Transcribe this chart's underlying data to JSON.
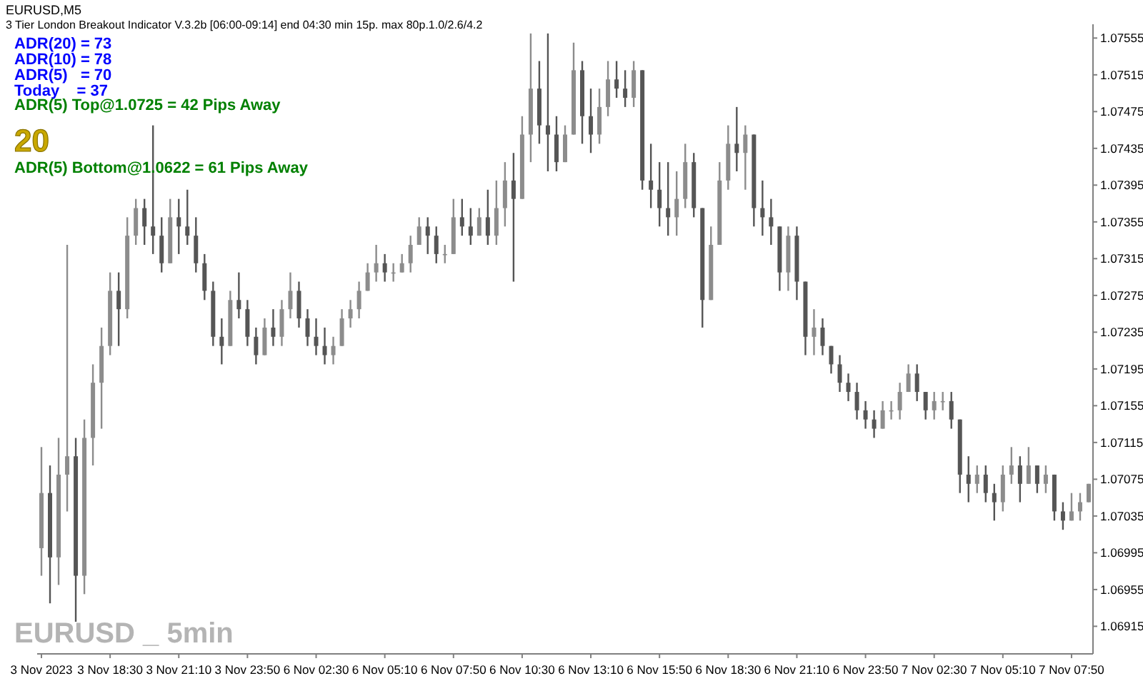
{
  "chart_data": {
    "type": "candlestick",
    "title": "EURUSD,M5",
    "subtitle": "3 Tier London Breakout Indicator V.3.2b [06:00-09:14] end 04:30 min 15p. max 80p.1.0/2.6/4.2",
    "annotations": [
      "ADR(20) = 73",
      "ADR(10) = 78",
      "ADR(5)   = 70",
      "Today    = 37",
      "ADR(5) Top@1.0725 = 42 Pips Away",
      "20",
      "ADR(5) Bottom@1.0622 = 61 Pips Away",
      "EURUSD _ 5min"
    ],
    "colors": [
      "#8c8c8c",
      "#555555",
      "#8c8c8c",
      "#8c8c8c",
      "#555555",
      "#8c8c8c",
      "#8c8c8c",
      "#8c8c8c",
      "#8c8c8c",
      "#555555",
      "#8c8c8c",
      "#8c8c8c",
      "#555555",
      "#555555",
      "#555555",
      "#8c8c8c",
      "#555555",
      "#555555",
      "#555555",
      "#555555",
      "#555555",
      "#555555",
      "#8c8c8c",
      "#555555",
      "#555555",
      "#555555",
      "#8c8c8c",
      "#555555",
      "#8c8c8c",
      "#8c8c8c",
      "#555555",
      "#555555",
      "#555555",
      "#555555",
      "#8c8c8c",
      "#8c8c8c",
      "#8c8c8c",
      "#8c8c8c",
      "#8c8c8c",
      "#8c8c8c",
      "#555555",
      "#8c8c8c",
      "#8c8c8c",
      "#8c8c8c",
      "#8c8c8c",
      "#555555",
      "#555555",
      "#8c8c8c",
      "#8c8c8c",
      "#555555",
      "#555555",
      "#8c8c8c",
      "#555555",
      "#8c8c8c",
      "#8c8c8c",
      "#555555",
      "#8c8c8c",
      "#8c8c8c",
      "#555555",
      "#555555",
      "#555555",
      "#8c8c8c",
      "#8c8c8c",
      "#555555",
      "#555555",
      "#8c8c8c",
      "#8c8c8c",
      "#555555",
      "#555555",
      "#8c8c8c",
      "#555555",
      "#555555",
      "#555555",
      "#555555",
      "#8c8c8c",
      "#8c8c8c",
      "#555555",
      "#555555",
      "#8c8c8c",
      "#8c8c8c",
      "#8c8c8c",
      "#555555",
      "#8c8c8c",
      "#555555",
      "#555555",
      "#555555",
      "#555555",
      "#8c8c8c",
      "#555555",
      "#555555",
      "#8c8c8c",
      "#555555",
      "#555555",
      "#555555",
      "#555555",
      "#555555",
      "#555555",
      "#555555",
      "#8c8c8c",
      "#8c8c8c",
      "#8c8c8c",
      "#8c8c8c",
      "#555555",
      "#555555",
      "#8c8c8c",
      "#8c8c8c",
      "#555555",
      "#555555",
      "#555555",
      "#8c8c8c",
      "#555555",
      "#555555",
      "#8c8c8c",
      "#8c8c8c",
      "#555555",
      "#8c8c8c",
      "#555555",
      "#8c8c8c",
      "#555555",
      "#555555",
      "#8c8c8c",
      "#8c8c8c",
      "#8c8c8c"
    ],
    "ylim": [
      1.06885,
      1.0757
    ],
    "yticks": [
      1.06915,
      1.06955,
      1.06995,
      1.07035,
      1.07075,
      1.07115,
      1.07155,
      1.07195,
      1.07235,
      1.07275,
      1.07315,
      1.07355,
      1.07395,
      1.07435,
      1.07475,
      1.07515,
      1.07555
    ],
    "categories": [
      "3 Nov 2023",
      null,
      null,
      null,
      null,
      null,
      null,
      null,
      "3 Nov 18:30",
      null,
      null,
      null,
      null,
      null,
      null,
      null,
      "3 Nov 21:10",
      null,
      null,
      null,
      null,
      null,
      null,
      null,
      "3 Nov 23:50",
      null,
      null,
      null,
      null,
      null,
      null,
      null,
      "6 Nov 02:30",
      null,
      null,
      null,
      null,
      null,
      null,
      null,
      "6 Nov 05:10",
      null,
      null,
      null,
      null,
      null,
      null,
      null,
      "6 Nov 07:50",
      null,
      null,
      null,
      null,
      null,
      null,
      null,
      "6 Nov 10:30",
      null,
      null,
      null,
      null,
      null,
      null,
      null,
      "6 Nov 13:10",
      null,
      null,
      null,
      null,
      null,
      null,
      null,
      "6 Nov 15:50",
      null,
      null,
      null,
      null,
      null,
      null,
      null,
      "6 Nov 18:30",
      null,
      null,
      null,
      null,
      null,
      null,
      null,
      "6 Nov 21:10",
      null,
      null,
      null,
      null,
      null,
      null,
      null,
      "6 Nov 23:50",
      null,
      null,
      null,
      null,
      null,
      null,
      null,
      "7 Nov 02:30",
      null,
      null,
      null,
      null,
      null,
      null,
      null,
      "7 Nov 05:10",
      null,
      null,
      null,
      null,
      null,
      null,
      null,
      "7 Nov 07:50",
      null,
      null
    ],
    "ohlc": [
      [
        1.07,
        1.0711,
        1.0697,
        1.0706
      ],
      [
        1.0706,
        1.0709,
        1.0694,
        1.0699
      ],
      [
        1.0699,
        1.0712,
        1.0696,
        1.0708
      ],
      [
        1.0708,
        1.0733,
        1.0704,
        1.071
      ],
      [
        1.071,
        1.0712,
        1.0692,
        1.0697
      ],
      [
        1.0697,
        1.0714,
        1.0695,
        1.0712
      ],
      [
        1.0712,
        1.072,
        1.0709,
        1.0718
      ],
      [
        1.0718,
        1.0724,
        1.0713,
        1.0722
      ],
      [
        1.0722,
        1.073,
        1.0721,
        1.0728
      ],
      [
        1.0728,
        1.073,
        1.0722,
        1.0726
      ],
      [
        1.0726,
        1.0736,
        1.0725,
        1.0734
      ],
      [
        1.0734,
        1.0738,
        1.0733,
        1.0737
      ],
      [
        1.0737,
        1.0738,
        1.0733,
        1.0735
      ],
      [
        1.0735,
        1.0746,
        1.0732,
        1.0734
      ],
      [
        1.0734,
        1.0736,
        1.073,
        1.0731
      ],
      [
        1.0731,
        1.0738,
        1.0731,
        1.0736
      ],
      [
        1.0736,
        1.0738,
        1.0732,
        1.0735
      ],
      [
        1.0735,
        1.0739,
        1.0733,
        1.0734
      ],
      [
        1.0734,
        1.0736,
        1.073,
        1.0731
      ],
      [
        1.0731,
        1.0732,
        1.0727,
        1.0728
      ],
      [
        1.0728,
        1.0729,
        1.0722,
        1.0723
      ],
      [
        1.0723,
        1.0725,
        1.072,
        1.0722
      ],
      [
        1.0722,
        1.0728,
        1.0722,
        1.0727
      ],
      [
        1.0727,
        1.073,
        1.0725,
        1.0726
      ],
      [
        1.0726,
        1.0727,
        1.0722,
        1.0723
      ],
      [
        1.0723,
        1.0724,
        1.072,
        1.0721
      ],
      [
        1.0721,
        1.0725,
        1.0721,
        1.0724
      ],
      [
        1.0724,
        1.0726,
        1.0722,
        1.0723
      ],
      [
        1.0723,
        1.0727,
        1.0722,
        1.0726
      ],
      [
        1.0726,
        1.073,
        1.0725,
        1.0728
      ],
      [
        1.0728,
        1.0729,
        1.0724,
        1.0725
      ],
      [
        1.0725,
        1.0726,
        1.0722,
        1.0723
      ],
      [
        1.0723,
        1.0725,
        1.0721,
        1.0722
      ],
      [
        1.0722,
        1.0724,
        1.072,
        1.0721
      ],
      [
        1.0721,
        1.0723,
        1.072,
        1.0722
      ],
      [
        1.0722,
        1.0726,
        1.0722,
        1.0725
      ],
      [
        1.0725,
        1.0727,
        1.0724,
        1.0726
      ],
      [
        1.0726,
        1.0729,
        1.0725,
        1.0728
      ],
      [
        1.0728,
        1.0731,
        1.0728,
        1.073
      ],
      [
        1.073,
        1.0733,
        1.0729,
        1.0731
      ],
      [
        1.0731,
        1.0732,
        1.0729,
        1.073
      ],
      [
        1.073,
        1.0731,
        1.0729,
        1.073
      ],
      [
        1.073,
        1.0732,
        1.073,
        1.0731
      ],
      [
        1.0731,
        1.0734,
        1.073,
        1.0733
      ],
      [
        1.0733,
        1.0736,
        1.0733,
        1.0735
      ],
      [
        1.0735,
        1.0736,
        1.0732,
        1.0734
      ],
      [
        1.0734,
        1.0735,
        1.0731,
        1.0732
      ],
      [
        1.0732,
        1.0733,
        1.0731,
        1.0732
      ],
      [
        1.0732,
        1.0738,
        1.0732,
        1.0736
      ],
      [
        1.0736,
        1.0738,
        1.0734,
        1.0735
      ],
      [
        1.0735,
        1.0737,
        1.0733,
        1.0734
      ],
      [
        1.0734,
        1.0737,
        1.0734,
        1.0736
      ],
      [
        1.0736,
        1.0739,
        1.0733,
        1.0734
      ],
      [
        1.0734,
        1.074,
        1.0733,
        1.0737
      ],
      [
        1.0737,
        1.0742,
        1.0735,
        1.074
      ],
      [
        1.074,
        1.0743,
        1.0729,
        1.0738
      ],
      [
        1.0738,
        1.0747,
        1.0738,
        1.0745
      ],
      [
        1.0745,
        1.0756,
        1.0742,
        1.075
      ],
      [
        1.075,
        1.0753,
        1.0744,
        1.0746
      ],
      [
        1.0746,
        1.0756,
        1.0741,
        1.0745
      ],
      [
        1.0745,
        1.0747,
        1.0741,
        1.0742
      ],
      [
        1.0742,
        1.0746,
        1.0742,
        1.0745
      ],
      [
        1.0745,
        1.0755,
        1.0745,
        1.0752
      ],
      [
        1.0752,
        1.0753,
        1.0744,
        1.0747
      ],
      [
        1.0747,
        1.075,
        1.0743,
        1.0745
      ],
      [
        1.0745,
        1.075,
        1.0744,
        1.0748
      ],
      [
        1.0748,
        1.0753,
        1.0747,
        1.0751
      ],
      [
        1.0751,
        1.0753,
        1.0749,
        1.075
      ],
      [
        1.075,
        1.0752,
        1.0748,
        1.0749
      ],
      [
        1.0749,
        1.0753,
        1.0748,
        1.0752
      ],
      [
        1.0752,
        1.0752,
        1.0739,
        1.074
      ],
      [
        1.074,
        1.0744,
        1.0737,
        1.0739
      ],
      [
        1.0739,
        1.0742,
        1.0735,
        1.0737
      ],
      [
        1.0737,
        1.0742,
        1.0734,
        1.0736
      ],
      [
        1.0736,
        1.0741,
        1.0734,
        1.0738
      ],
      [
        1.0738,
        1.0744,
        1.0737,
        1.0742
      ],
      [
        1.0742,
        1.0743,
        1.0736,
        1.0737
      ],
      [
        1.0737,
        1.0737,
        1.0724,
        1.0727
      ],
      [
        1.0727,
        1.0735,
        1.0727,
        1.0733
      ],
      [
        1.0733,
        1.0742,
        1.0733,
        1.074
      ],
      [
        1.074,
        1.0746,
        1.0739,
        1.0744
      ],
      [
        1.0744,
        1.0748,
        1.0741,
        1.0743
      ],
      [
        1.0743,
        1.0746,
        1.0739,
        1.0745
      ],
      [
        1.0745,
        1.0745,
        1.0735,
        1.0737
      ],
      [
        1.0737,
        1.074,
        1.0734,
        1.0736
      ],
      [
        1.0736,
        1.0738,
        1.0733,
        1.0735
      ],
      [
        1.0735,
        1.0735,
        1.0728,
        1.073
      ],
      [
        1.073,
        1.0735,
        1.0728,
        1.0734
      ],
      [
        1.0734,
        1.0735,
        1.0727,
        1.0729
      ],
      [
        1.0729,
        1.0729,
        1.0721,
        1.0723
      ],
      [
        1.0723,
        1.0726,
        1.0721,
        1.0724
      ],
      [
        1.0724,
        1.0725,
        1.0721,
        1.0722
      ],
      [
        1.0722,
        1.0722,
        1.0719,
        1.072
      ],
      [
        1.072,
        1.0721,
        1.0717,
        1.0718
      ],
      [
        1.0718,
        1.0719,
        1.0716,
        1.0717
      ],
      [
        1.0717,
        1.0718,
        1.0714,
        1.0715
      ],
      [
        1.0715,
        1.0716,
        1.0713,
        1.0714
      ],
      [
        1.0714,
        1.0715,
        1.0712,
        1.0713
      ],
      [
        1.0713,
        1.0716,
        1.0713,
        1.0715
      ],
      [
        1.0715,
        1.0716,
        1.0714,
        1.0715
      ],
      [
        1.0715,
        1.0718,
        1.0714,
        1.0717
      ],
      [
        1.0717,
        1.072,
        1.0717,
        1.0719
      ],
      [
        1.0719,
        1.072,
        1.0716,
        1.0717
      ],
      [
        1.0717,
        1.0717,
        1.0714,
        1.0715
      ],
      [
        1.0715,
        1.0717,
        1.0714,
        1.0716
      ],
      [
        1.0716,
        1.0717,
        1.0715,
        1.0716
      ],
      [
        1.0716,
        1.0717,
        1.0713,
        1.0714
      ],
      [
        1.0714,
        1.0714,
        1.0706,
        1.0708
      ],
      [
        1.0708,
        1.071,
        1.0705,
        1.0707
      ],
      [
        1.0707,
        1.0709,
        1.0706,
        1.0708
      ],
      [
        1.0708,
        1.0709,
        1.0705,
        1.0706
      ],
      [
        1.0706,
        1.0707,
        1.0703,
        1.0705
      ],
      [
        1.0705,
        1.0709,
        1.0704,
        1.0708
      ],
      [
        1.0708,
        1.0711,
        1.0707,
        1.0709
      ],
      [
        1.0709,
        1.071,
        1.0705,
        1.0707
      ],
      [
        1.0707,
        1.0711,
        1.0707,
        1.0709
      ],
      [
        1.0709,
        1.0709,
        1.0706,
        1.0707
      ],
      [
        1.0707,
        1.0709,
        1.0706,
        1.0708
      ],
      [
        1.0708,
        1.0708,
        1.0703,
        1.0704
      ],
      [
        1.0704,
        1.0705,
        1.0702,
        1.0703
      ],
      [
        1.0703,
        1.0706,
        1.0703,
        1.0704
      ],
      [
        1.0704,
        1.0706,
        1.0703,
        1.0705
      ],
      [
        1.0705,
        1.0707,
        1.0705,
        1.0707
      ]
    ]
  }
}
